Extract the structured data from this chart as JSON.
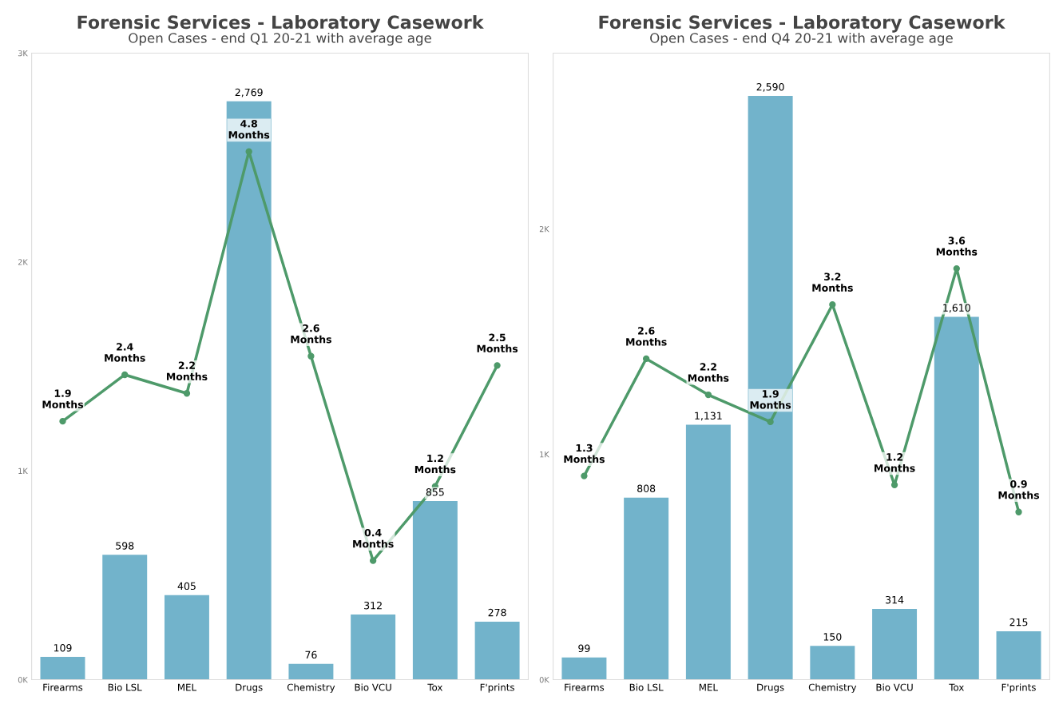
{
  "chart_data": [
    {
      "type": "bar",
      "title": "Forensic Services - Laboratory Casework",
      "subtitle": "Open Cases - end Q1 20-21 with average age",
      "categories": [
        "Firearms",
        "Bio LSL",
        "MEL",
        "Drugs",
        "Chemistry",
        "Bio VCU",
        "Tox",
        "F'prints"
      ],
      "ylim": [
        0,
        3000
      ],
      "yticks": [
        {
          "value": 0,
          "label": "0K"
        },
        {
          "value": 1000,
          "label": "1K"
        },
        {
          "value": 2000,
          "label": "2K"
        },
        {
          "value": 3000,
          "label": "3K"
        }
      ],
      "y2lim": [
        -0.88,
        5.86
      ],
      "grid": false,
      "marker": "circle",
      "series": [
        {
          "color": "#72b3cb",
          "values": [
            109,
            598,
            405,
            2769,
            76,
            312,
            855,
            278
          ],
          "value_labels": [
            "109",
            "598",
            "405",
            "2,769",
            "76",
            "312",
            "855",
            "278"
          ]
        },
        {
          "type": "line",
          "axis": "y2",
          "color": "#4e9a6a",
          "values": [
            1.9,
            2.4,
            2.2,
            4.8,
            2.6,
            0.4,
            1.2,
            2.5
          ],
          "value_labels": [
            "1.9\nMonths",
            "2.4\nMonths",
            "2.2\nMonths",
            "4.8\nMonths",
            "2.6\nMonths",
            "0.4\nMonths",
            "1.2\nMonths",
            "2.5\nMonths"
          ]
        }
      ]
    },
    {
      "type": "bar",
      "title": "Forensic Services - Laboratory Casework",
      "subtitle": "Open Cases - end Q4 20-21 with average age",
      "categories": [
        "Firearms",
        "Bio LSL",
        "MEL",
        "Drugs",
        "Chemistry",
        "Bio VCU",
        "Tox",
        "F'prints"
      ],
      "ylim": [
        0,
        2780
      ],
      "yticks": [
        {
          "value": 0,
          "label": "0K"
        },
        {
          "value": 1000,
          "label": "1K"
        },
        {
          "value": 2000,
          "label": "2K"
        }
      ],
      "y2lim": [
        -0.96,
        5.99
      ],
      "grid": false,
      "marker": "circle",
      "series": [
        {
          "color": "#72b3cb",
          "values": [
            99,
            808,
            1131,
            2590,
            150,
            314,
            1610,
            215
          ],
          "value_labels": [
            "99",
            "808",
            "1,131",
            "2,590",
            "150",
            "314",
            "1,610",
            "215"
          ]
        },
        {
          "type": "line",
          "axis": "y2",
          "color": "#4e9a6a",
          "values": [
            1.3,
            2.6,
            2.2,
            1.9,
            3.2,
            1.2,
            3.6,
            0.9
          ],
          "value_labels": [
            "1.3\nMonths",
            "2.6\nMonths",
            "2.2\nMonths",
            "1.9\nMonths",
            "3.2\nMonths",
            "1.2\nMonths",
            "3.6\nMonths",
            "0.9\nMonths"
          ]
        }
      ]
    }
  ]
}
